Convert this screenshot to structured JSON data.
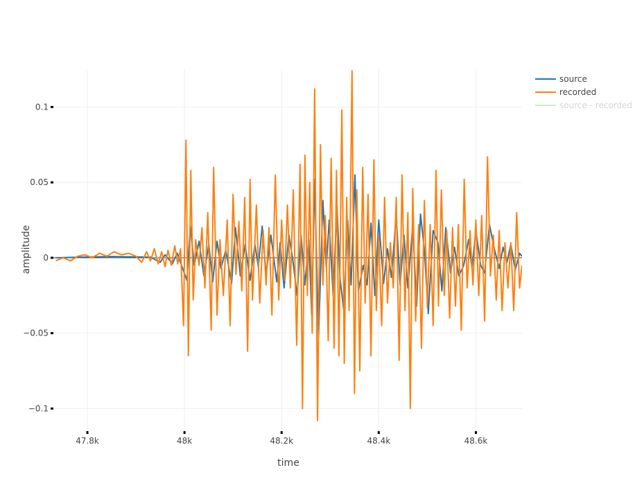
{
  "chart_data": {
    "type": "line",
    "title": "",
    "xlabel": "time",
    "ylabel": "amplitude",
    "xlim": [
      47730,
      48695
    ],
    "ylim": [
      -0.115,
      0.125
    ],
    "x_ticks": [
      47800,
      48000,
      48200,
      48400,
      48600
    ],
    "x_tick_labels": [
      "47.8k",
      "48k",
      "48.2k",
      "48.4k",
      "48.6k"
    ],
    "y_ticks": [
      0.1,
      0.05,
      0,
      -0.05,
      -0.1
    ],
    "y_tick_labels": [
      "0.1",
      "0.05",
      "0",
      "−0.05",
      "−0.1"
    ],
    "grid": true,
    "legend_position": "top-right",
    "series": [
      {
        "name": "source",
        "color": "#1f77b4",
        "visible": true,
        "x": [
          47735,
          47800,
          47850,
          47900,
          47930,
          47950,
          47960,
          47975,
          47985,
          47995,
          48005,
          48012,
          48020,
          48030,
          48040,
          48050,
          48058,
          48067,
          48075,
          48085,
          48097,
          48105,
          48115,
          48125,
          48135,
          48145,
          48152,
          48160,
          48168,
          48178,
          48190,
          48197,
          48205,
          48215,
          48222,
          48232,
          48240,
          48248,
          48256,
          48262,
          48268,
          48276,
          48285,
          48292,
          48298,
          48306,
          48314,
          48320,
          48328,
          48336,
          48343,
          48351,
          48358,
          48368,
          48376,
          48384,
          48392,
          48400,
          48410,
          48418,
          48426,
          48436,
          48444,
          48452,
          48460,
          48470,
          48478,
          48486,
          48494,
          48502,
          48512,
          48522,
          48530,
          48538,
          48548,
          48556,
          48565,
          48575,
          48585,
          48592,
          48600,
          48610,
          48618,
          48628,
          48638,
          48648,
          48656,
          48664,
          48672,
          48681,
          48690,
          48695
        ],
        "y": [
          0,
          0.0005,
          0.0008,
          0.0006,
          0.0004,
          -0.003,
          0.002,
          -0.004,
          0.003,
          -0.006,
          -0.015,
          0.021,
          -0.005,
          0.011,
          -0.012,
          0.009,
          -0.016,
          0.011,
          -0.007,
          0.005,
          -0.017,
          0.02,
          -0.012,
          0.009,
          -0.015,
          0.009,
          -0.006,
          0.021,
          -0.011,
          0.015,
          -0.016,
          0.01,
          -0.02,
          0.015,
          0.001,
          -0.025,
          0.015,
          -0.018,
          0.012,
          -0.038,
          0.052,
          -0.053,
          0.038,
          -0.006,
          0.025,
          -0.025,
          0.035,
          -0.013,
          -0.035,
          0.025,
          -0.018,
          0.055,
          -0.022,
          -0.005,
          -0.018,
          0.023,
          -0.025,
          0.025,
          -0.017,
          0.006,
          -0.013,
          0.028,
          -0.018,
          0.015,
          -0.02,
          0.022,
          -0.032,
          0.029,
          0.005,
          -0.037,
          0.018,
          0.01,
          -0.022,
          0.02,
          -0.01,
          0.007,
          -0.012,
          -0.005,
          0.012,
          -0.007,
          0.018,
          -0.005,
          -0.01,
          0.022,
          0.006,
          -0.007,
          0.007,
          -0.003,
          0.009,
          -0.008,
          0.003,
          0.001
        ]
      },
      {
        "name": "recorded",
        "color": "#ff7f0e",
        "visible": true,
        "x": [
          47735,
          47750,
          47765,
          47780,
          47795,
          47810,
          47825,
          47840,
          47855,
          47870,
          47885,
          47900,
          47912,
          47922,
          47930,
          47938,
          47946,
          47953,
          47960,
          47966,
          47973,
          47980,
          47986,
          47992,
          47998,
          48003,
          48008,
          48013,
          48018,
          48023,
          48030,
          48036,
          48042,
          48048,
          48055,
          48060,
          48067,
          48073,
          48080,
          48088,
          48094,
          48100,
          48106,
          48112,
          48118,
          48124,
          48130,
          48135,
          48140,
          48148,
          48155,
          48162,
          48168,
          48174,
          48180,
          48187,
          48194,
          48200,
          48206,
          48212,
          48218,
          48224,
          48231,
          48238,
          48243,
          48248,
          48253,
          48258,
          48263,
          48268,
          48274,
          48280,
          48285,
          48290,
          48296,
          48302,
          48308,
          48313,
          48318,
          48324,
          48329,
          48334,
          48339,
          48345,
          48350,
          48355,
          48361,
          48367,
          48372,
          48378,
          48384,
          48390,
          48395,
          48400,
          48406,
          48412,
          48418,
          48424,
          48430,
          48436,
          48442,
          48448,
          48454,
          48460,
          48465,
          48470,
          48476,
          48482,
          48488,
          48494,
          48500,
          48506,
          48512,
          48518,
          48523,
          48529,
          48535,
          48540,
          48546,
          48552,
          48558,
          48564,
          48570,
          48576,
          48582,
          48588,
          48594,
          48600,
          48606,
          48612,
          48618,
          48624,
          48630,
          48636,
          48642,
          48648,
          48654,
          48660,
          48666,
          48672,
          48678,
          48684,
          48690,
          48695
        ],
        "y": [
          -0.002,
          0,
          -0.002,
          0.001,
          0.002,
          0,
          0.003,
          0.001,
          0.004,
          0.002,
          0.003,
          0.001,
          -0.003,
          0.004,
          -0.002,
          0.006,
          -0.004,
          0.004,
          -0.006,
          0.005,
          -0.005,
          0.008,
          -0.004,
          0.006,
          -0.045,
          0.078,
          -0.065,
          0.058,
          -0.028,
          0.012,
          -0.005,
          0.02,
          -0.02,
          0.03,
          -0.048,
          0.06,
          -0.038,
          0.012,
          -0.025,
          0.025,
          -0.045,
          0.042,
          -0.011,
          0.024,
          -0.022,
          0.04,
          -0.062,
          0.052,
          -0.028,
          0.035,
          -0.03,
          0.018,
          -0.018,
          0.02,
          -0.038,
          0.055,
          -0.028,
          0.025,
          -0.015,
          0.035,
          -0.02,
          0.045,
          -0.058,
          0.062,
          -0.1,
          0.068,
          -0.025,
          0.05,
          -0.05,
          0.112,
          -0.108,
          0.075,
          -0.018,
          0.028,
          -0.055,
          0.066,
          -0.06,
          0.058,
          -0.065,
          0.098,
          -0.07,
          0.04,
          -0.035,
          0.124,
          -0.09,
          0.045,
          -0.075,
          0.06,
          -0.03,
          0.042,
          -0.065,
          0.065,
          -0.035,
          0.015,
          -0.045,
          0.04,
          -0.03,
          0.01,
          -0.02,
          0.04,
          -0.068,
          0.055,
          -0.035,
          0.03,
          -0.1,
          0.046,
          -0.042,
          0.022,
          -0.06,
          0.038,
          -0.033,
          0.022,
          -0.045,
          0.058,
          -0.032,
          0.045,
          -0.025,
          0.018,
          -0.04,
          0.02,
          -0.032,
          0.022,
          -0.048,
          0.052,
          -0.02,
          0.018,
          -0.018,
          0.025,
          -0.025,
          0.028,
          -0.042,
          0.067,
          -0.012,
          0.015,
          -0.028,
          0.018,
          -0.035,
          0.01,
          -0.02,
          0.01,
          -0.035,
          0.03,
          -0.02,
          -0.005
        ]
      },
      {
        "name": "source - recorded",
        "color": "#98df8a",
        "visible": false,
        "x": [],
        "y": []
      }
    ]
  }
}
